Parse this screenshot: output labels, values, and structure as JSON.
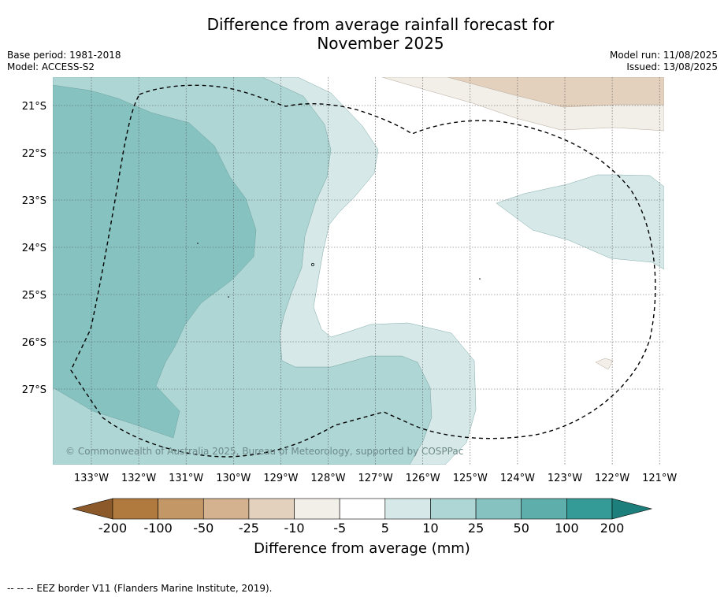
{
  "title_line1": "Difference from average rainfall forecast for",
  "title_line2": "November 2025",
  "meta_left": [
    "Base period: 1981-2018",
    "Model: ACCESS-S2"
  ],
  "meta_right": [
    "Model run: 11/08/2025",
    "Issued: 13/08/2025"
  ],
  "lat_labels": [
    "21°S",
    "22°S",
    "23°S",
    "24°S",
    "25°S",
    "26°S",
    "27°S"
  ],
  "lon_labels": [
    "133°W",
    "132°W",
    "131°W",
    "130°W",
    "129°W",
    "128°W",
    "127°W",
    "126°W",
    "125°W",
    "124°W",
    "123°W",
    "122°W",
    "121°W"
  ],
  "copyright": "© Commonwealth of Australia 2025, Bureau of Meteorology, supported by COSPPac",
  "colorbar": {
    "label": "Difference from average (mm)",
    "ticks": [
      "-200",
      "-100",
      "-50",
      "-25",
      "-10",
      "-5",
      "5",
      "10",
      "25",
      "50",
      "100",
      "200"
    ],
    "colors": [
      "#8c5a2a",
      "#b07a3e",
      "#c39766",
      "#d4b290",
      "#e3d0bd",
      "#f2eee8",
      "#ffffff",
      "#d6e9e8",
      "#add6d5",
      "#86c2c0",
      "#5eafac",
      "#359b97",
      "#1c7f7b"
    ]
  },
  "footer": "-- -- -- EEZ border V11 (Flanders Marine Institute, 2019)."
}
